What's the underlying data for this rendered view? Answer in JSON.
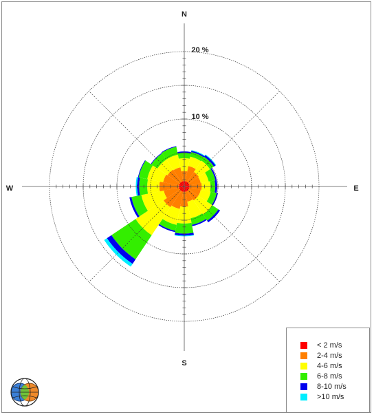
{
  "chart_data": {
    "type": "windrose",
    "directions": [
      "N",
      "NNE",
      "NE",
      "ENE",
      "E",
      "ESE",
      "SE",
      "SSE",
      "S",
      "SSW",
      "SW",
      "WSW",
      "W",
      "WNW",
      "NW",
      "NNW"
    ],
    "compass_labels": {
      "n": "N",
      "e": "E",
      "s": "S",
      "w": "W"
    },
    "ring_labels": [
      "10 %",
      "20 %"
    ],
    "rlim": [
      0,
      20
    ],
    "series": [
      {
        "name": "< 2 m/s",
        "color": "#ff0000",
        "values": [
          0.8,
          0.8,
          0.8,
          0.8,
          0.8,
          0.8,
          0.8,
          0.8,
          0.8,
          0.8,
          0.8,
          0.8,
          0.8,
          0.8,
          0.8,
          0.8
        ]
      },
      {
        "name": "2-4 m/s",
        "color": "#ff7f00",
        "values": [
          1.5,
          2.3,
          1.8,
          1.7,
          1.8,
          1.7,
          1.7,
          1.5,
          2.2,
          2.6,
          2.9,
          2.3,
          2.9,
          2.4,
          2.2,
          2.1
        ]
      },
      {
        "name": "4-6 m/s",
        "color": "#ffff00",
        "values": [
          1.9,
          1.4,
          2.0,
          1.2,
          1.3,
          1.5,
          2.5,
          2.5,
          2.5,
          2.4,
          5.0,
          3.4,
          1.8,
          2.4,
          1.8,
          1.9
        ]
      },
      {
        "name": "6-8 m/s",
        "color": "#33ee00",
        "values": [
          0.8,
          0.7,
          0.7,
          1.0,
          0.7,
          0.9,
          1.1,
          1.0,
          1.5,
          0.9,
          4.3,
          1.5,
          1.2,
          1.3,
          1.1,
          1.2
        ]
      },
      {
        "name": "8-10 m/s",
        "color": "#0000ee",
        "values": [
          0.2,
          0.2,
          0.3,
          0.2,
          0.3,
          0.2,
          0.3,
          0.2,
          0.3,
          0.2,
          0.8,
          0.3,
          0.3,
          0.1,
          0.1,
          0.1
        ]
      },
      {
        "name": ">10 m/s",
        "color": "#00eeff",
        "values": [
          0.0,
          0.1,
          0.1,
          0.0,
          0.0,
          0.0,
          0.0,
          0.0,
          0.1,
          0.0,
          0.5,
          0.0,
          0.2,
          0.0,
          0.0,
          0.0
        ]
      }
    ]
  }
}
